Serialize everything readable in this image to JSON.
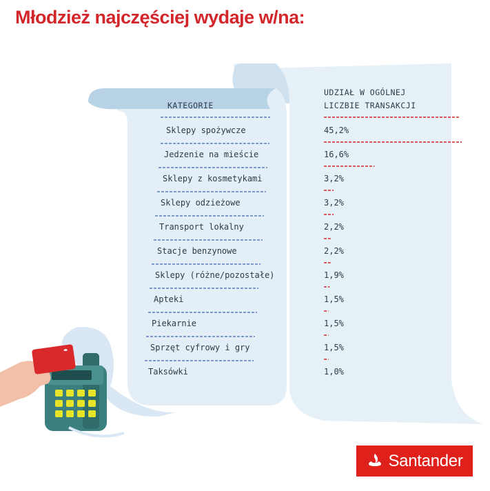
{
  "title": "Młodzież najczęściej wydaje w/na:",
  "headers": {
    "category": "KATEGORIE",
    "share_line1": "UDZIAŁ W OGÓLNEJ",
    "share_line2": "LICZBIE TRANSAKCJI"
  },
  "brand": "Santander",
  "colors": {
    "accent": "#d2262a",
    "dashes_blue": "#5a7fc4",
    "receipt": "#e3eef6",
    "receipt_back": "#cfe1ee"
  },
  "chart_data": {
    "type": "bar",
    "title": "Młodzież najczęściej wydaje w/na:",
    "categories": [
      "Sklepy spożywcze",
      "Jedzenie na mieście",
      "Sklepy z kosmetykami",
      "Sklepy odzieżowe",
      "Transport lokalny",
      "Stacje benzynowe",
      "Sklepy (różne/pozostałe)",
      "Apteki",
      "Piekarnie",
      "Sprzęt cyfrowy i gry",
      "Taksówki"
    ],
    "values": [
      45.2,
      16.6,
      3.2,
      3.2,
      2.2,
      2.2,
      1.9,
      1.5,
      1.5,
      1.5,
      1.0
    ],
    "labels": [
      "45,2%",
      "16,6%",
      "3,2%",
      "3,2%",
      "2,2%",
      "2,2%",
      "1,9%",
      "1,5%",
      "1,5%",
      "1,5%",
      "1,0%"
    ],
    "xlabel": "KATEGORIE",
    "ylabel": "UDZIAŁ W OGÓLNEJ LICZBIE TRANSAKCJI",
    "unit": "%"
  }
}
